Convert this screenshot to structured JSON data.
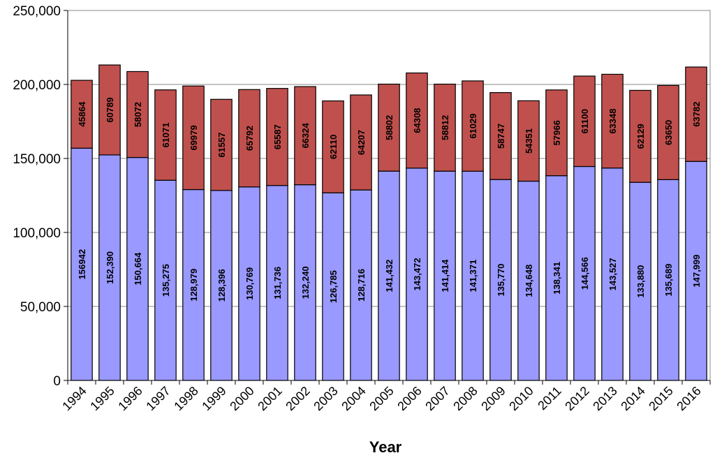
{
  "chart_data": {
    "type": "bar",
    "stacked": true,
    "title": "",
    "xlabel": "Year",
    "ylabel": "",
    "ylim": [
      0,
      250000
    ],
    "yticks": [
      "0",
      "50,000",
      "100,000",
      "150,000",
      "200,000",
      "250,000"
    ],
    "ytick_values": [
      0,
      50000,
      100000,
      150000,
      200000,
      250000
    ],
    "grid": true,
    "legend": "none",
    "categories": [
      "1994",
      "1995",
      "1996",
      "1997",
      "1998",
      "1999",
      "2000",
      "2001",
      "2002",
      "2003",
      "2004",
      "2005",
      "2006",
      "2007",
      "2008",
      "2009",
      "2010",
      "2011",
      "2012",
      "2013",
      "2014",
      "2015",
      "2016"
    ],
    "series": [
      {
        "color": "#9999ff",
        "values": [
          156942,
          152390,
          150664,
          135275,
          128979,
          128396,
          130769,
          131736,
          132240,
          126785,
          128716,
          141432,
          143472,
          141414,
          141371,
          135770,
          134648,
          138341,
          144566,
          143527,
          133880,
          135689,
          147999
        ],
        "labels": [
          "156942",
          "152,390",
          "150,664",
          "135,275",
          "128,979",
          "128,396",
          "130,769",
          "131,736",
          "132,240",
          "126,785",
          "128,716",
          "141,432",
          "143,472",
          "141,414",
          "141,371",
          "135,770",
          "134,648",
          "138,341",
          "144,566",
          "143,527",
          "133,880",
          "135,689",
          "147,999"
        ]
      },
      {
        "color": "#c0504d",
        "values": [
          45864,
          60789,
          58072,
          61071,
          69979,
          61557,
          65792,
          65587,
          66324,
          62110,
          64207,
          58802,
          64308,
          58812,
          61029,
          58747,
          54351,
          57966,
          61100,
          63348,
          62129,
          63650,
          63782
        ],
        "labels": [
          "45864",
          "60789",
          "58072",
          "61071",
          "69979",
          "61557",
          "65792",
          "65587",
          "66324",
          "62110",
          "64207",
          "58802",
          "64308",
          "58812",
          "61029",
          "58747",
          "54351",
          "57966",
          "61100",
          "63348",
          "62129",
          "63650",
          "63782"
        ]
      }
    ]
  }
}
